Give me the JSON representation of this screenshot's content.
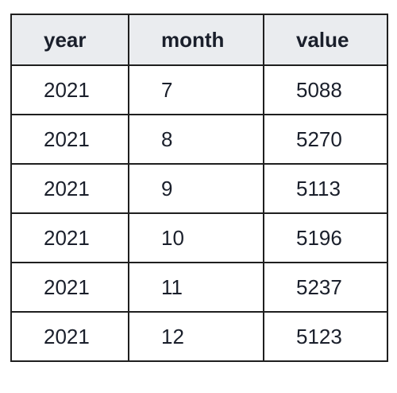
{
  "chart_data": {
    "type": "table",
    "columns": [
      "year",
      "month",
      "value"
    ],
    "rows": [
      [
        "2021",
        "7",
        "5088"
      ],
      [
        "2021",
        "8",
        "5270"
      ],
      [
        "2021",
        "9",
        "5113"
      ],
      [
        "2021",
        "10",
        "5196"
      ],
      [
        "2021",
        "11",
        "5237"
      ],
      [
        "2021",
        "12",
        "5123"
      ]
    ]
  }
}
